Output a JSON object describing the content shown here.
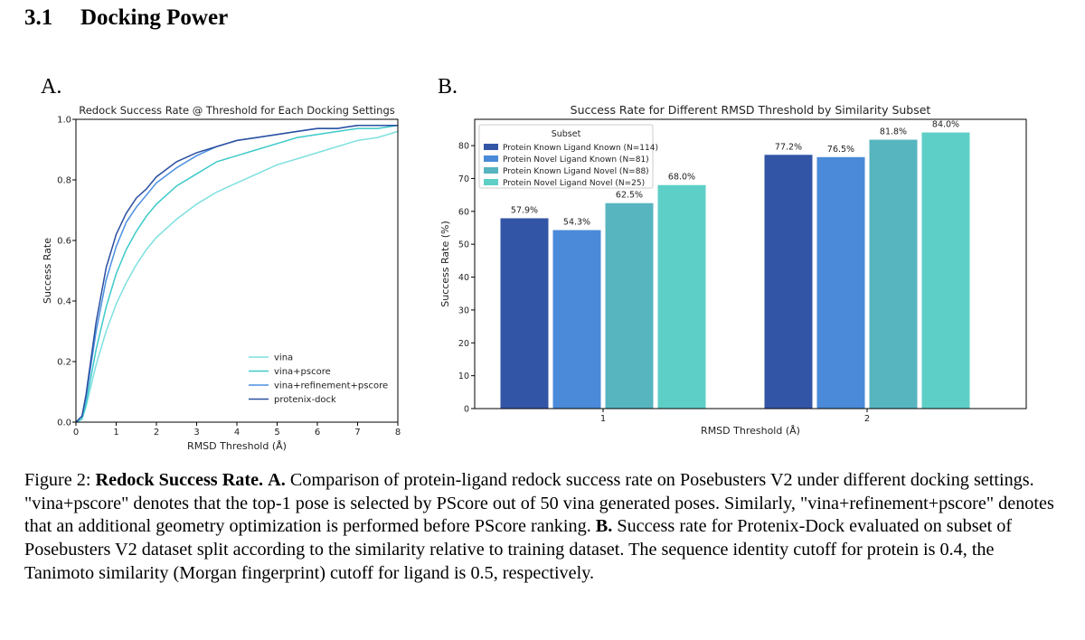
{
  "section": {
    "number": "3.1",
    "title": "Docking Power"
  },
  "panels": [
    {
      "label": "A."
    },
    {
      "label": "B."
    }
  ],
  "chart_data": [
    {
      "type": "line",
      "title": "Redock Success Rate @ Threshold for Each Docking Settings",
      "xlabel": "RMSD Threshold (Å)",
      "ylabel": "Success Rate",
      "xlim": [
        0,
        8
      ],
      "ylim": [
        0,
        1.0
      ],
      "xticks": [
        "0",
        "1",
        "2",
        "3",
        "4",
        "5",
        "6",
        "7",
        "8"
      ],
      "yticks": [
        "0.0",
        "0.2",
        "0.4",
        "0.6",
        "0.8",
        "1.0"
      ],
      "grid": false,
      "legend": "bottom-right",
      "x": [
        0,
        0.15,
        0.25,
        0.5,
        0.75,
        1,
        1.25,
        1.5,
        1.75,
        2,
        2.5,
        3,
        3.5,
        4,
        4.5,
        5,
        5.5,
        6,
        6.5,
        7,
        7.5,
        8
      ],
      "series": [
        {
          "name": "vina",
          "color": "#7fe0e0",
          "values": [
            0,
            0.01,
            0.05,
            0.19,
            0.3,
            0.39,
            0.46,
            0.52,
            0.57,
            0.61,
            0.67,
            0.72,
            0.76,
            0.79,
            0.82,
            0.85,
            0.87,
            0.89,
            0.91,
            0.93,
            0.94,
            0.96
          ]
        },
        {
          "name": "vina+pscore",
          "color": "#3fc9c9",
          "values": [
            0,
            0.01,
            0.06,
            0.24,
            0.38,
            0.49,
            0.57,
            0.63,
            0.68,
            0.72,
            0.78,
            0.82,
            0.86,
            0.88,
            0.9,
            0.92,
            0.94,
            0.95,
            0.96,
            0.97,
            0.97,
            0.98
          ]
        },
        {
          "name": "vina+refinement+pscore",
          "color": "#4a8fe0",
          "values": [
            0,
            0.02,
            0.08,
            0.3,
            0.47,
            0.58,
            0.66,
            0.71,
            0.75,
            0.79,
            0.84,
            0.88,
            0.91,
            0.93,
            0.94,
            0.95,
            0.96,
            0.97,
            0.97,
            0.98,
            0.98,
            0.98
          ]
        },
        {
          "name": "protenix-dock",
          "color": "#2b4fa0",
          "values": [
            0,
            0.02,
            0.09,
            0.33,
            0.51,
            0.62,
            0.69,
            0.74,
            0.77,
            0.81,
            0.86,
            0.89,
            0.91,
            0.93,
            0.94,
            0.95,
            0.96,
            0.97,
            0.97,
            0.98,
            0.98,
            0.98
          ]
        }
      ]
    },
    {
      "type": "bar",
      "title": "Success Rate for Different RMSD Threshold by Similarity Subset",
      "xlabel": "RMSD Threshold (Å)",
      "ylabel": "Success Rate (%)",
      "categories": [
        "1",
        "2"
      ],
      "ylim": [
        0,
        88
      ],
      "yticks": [
        "0",
        "10",
        "20",
        "30",
        "40",
        "50",
        "60",
        "70",
        "80"
      ],
      "grid": false,
      "legend": "top-left",
      "legend_title": "Subset",
      "series": [
        {
          "name": "Protein Known Ligand Known (N=114)",
          "color": "#3355a6",
          "values": [
            57.9,
            77.2
          ],
          "labels": [
            "57.9%",
            "77.2%"
          ]
        },
        {
          "name": "Protein Novel Ligand Known (N=81)",
          "color": "#4a8ad8",
          "values": [
            54.3,
            76.5
          ],
          "labels": [
            "54.3%",
            "76.5%"
          ]
        },
        {
          "name": "Protein Known Ligand Novel (N=88)",
          "color": "#56b5bf",
          "values": [
            62.5,
            81.8
          ],
          "labels": [
            "62.5%",
            "81.8%"
          ]
        },
        {
          "name": "Protein Novel Ligand Novel (N=25)",
          "color": "#5ecfc6",
          "values": [
            68.0,
            84.0
          ],
          "labels": [
            "68.0%",
            "84.0%"
          ]
        }
      ]
    }
  ],
  "caption": {
    "fig_label": "Figure 2:",
    "bold_title": "Redock Success Rate.",
    "a_label": "A.",
    "a_text": "Comparison of protein-ligand redock success rate on Posebusters V2 under different docking settings. \"vina+pscore\" denotes that the top-1 pose is selected by PScore out of 50 vina generated poses. Similarly, \"vina+refinement+pscore\" denotes that an additional geometry optimization is performed before PScore ranking.",
    "b_label": "B.",
    "b_text": "Success rate for Protenix-Dock evaluated on subset of Posebusters V2 dataset split according to the similarity relative to training dataset. The sequence identity cutoff for protein is 0.4, the Tanimoto similarity (Morgan fingerprint) cutoff for ligand is 0.5, respectively."
  }
}
